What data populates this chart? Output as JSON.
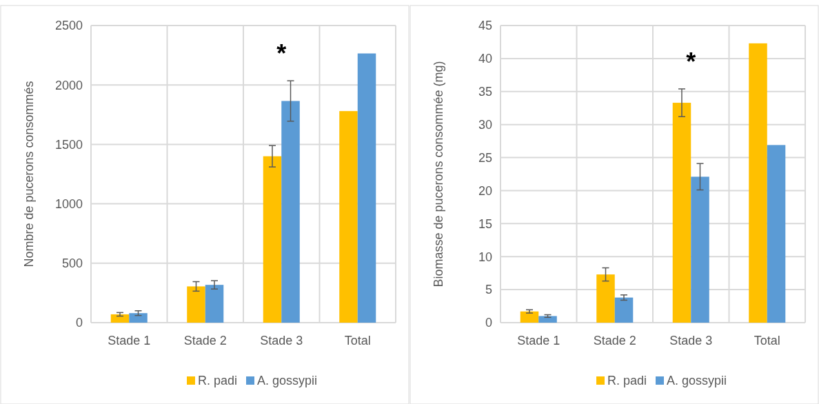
{
  "chart_data": [
    {
      "type": "bar",
      "ylabel": "Nombre de pucerons consommés",
      "categories": [
        "Stade 1",
        "Stade 2",
        "Stade 3",
        "Total"
      ],
      "ylim": [
        0,
        2500
      ],
      "yticks": [
        0,
        500,
        1000,
        1500,
        2000,
        2500
      ],
      "grid": true,
      "legend": "bottom",
      "series": [
        {
          "name": "R. padi",
          "color": "#ffc000",
          "values": [
            70,
            305,
            1400,
            1780
          ],
          "errors": [
            15,
            40,
            90,
            null
          ]
        },
        {
          "name": "A. gossypii",
          "color": "#5b9bd5",
          "values": [
            80,
            318,
            1865,
            2265
          ],
          "errors": [
            20,
            35,
            170,
            null
          ]
        }
      ],
      "annotations": [
        "*"
      ]
    },
    {
      "type": "bar",
      "ylabel": "Biomasse de pucerons consommée (mg)",
      "categories": [
        "Stade 1",
        "Stade 2",
        "Stade 3",
        "Total"
      ],
      "ylim": [
        0,
        45
      ],
      "yticks": [
        0,
        5,
        10,
        15,
        20,
        25,
        30,
        35,
        40,
        45
      ],
      "grid": true,
      "legend": "bottom",
      "series": [
        {
          "name": "R. padi",
          "color": "#ffc000",
          "values": [
            1.7,
            7.3,
            33.3,
            42.3
          ],
          "errors": [
            0.25,
            1.0,
            2.1,
            null
          ]
        },
        {
          "name": "A. gossypii",
          "color": "#5b9bd5",
          "values": [
            1.0,
            3.8,
            22.1,
            26.9
          ],
          "errors": [
            0.2,
            0.4,
            2.0,
            null
          ]
        }
      ],
      "annotations": [
        "*"
      ]
    }
  ]
}
